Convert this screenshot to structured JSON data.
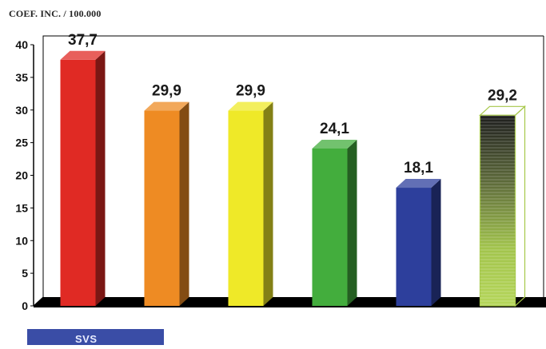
{
  "chart_data": {
    "type": "bar",
    "title": "COEF. INC. / 100.000",
    "ylabel": "",
    "xlabel": "",
    "ylim": [
      0,
      40
    ],
    "yticks": [
      0,
      5,
      10,
      15,
      20,
      25,
      30,
      35,
      40
    ],
    "categories": [
      "",
      "",
      "",
      "",
      "",
      ""
    ],
    "values": [
      37.7,
      29.9,
      29.9,
      24.1,
      18.1,
      29.2
    ],
    "value_labels": [
      "37,7",
      "29,9",
      "29,9",
      "24,1",
      "18,1",
      "29,2"
    ],
    "colors": [
      "#e02a24",
      "#ee8b23",
      "#efe928",
      "#43ad3d",
      "#2d3f9c",
      "#a7c84a"
    ],
    "grid": false,
    "bar_style": "3d"
  },
  "legend": {
    "label": "SVS",
    "color": "#3a4da6"
  }
}
